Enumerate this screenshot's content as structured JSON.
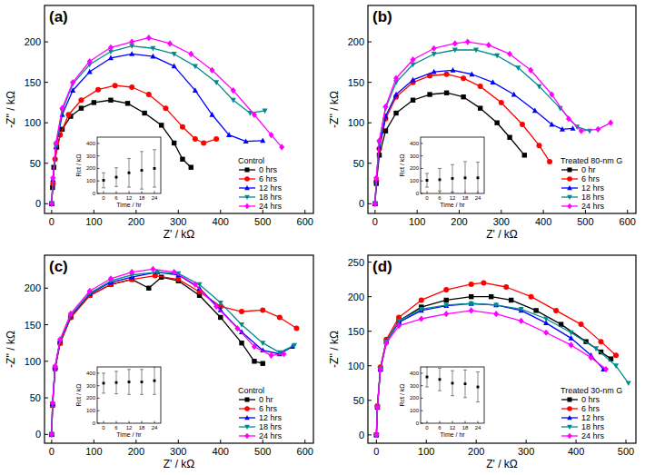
{
  "chart_data": [
    {
      "type": "line",
      "panel": "(a)",
      "xlabel": "Z' / kΩ",
      "ylabel": "-Z'' / kΩ",
      "xlim": [
        -17,
        620
      ],
      "ylim": [
        -12,
        245
      ],
      "xticks": [
        0,
        100,
        200,
        300,
        400,
        500,
        600
      ],
      "yticks": [
        0,
        50,
        100,
        150,
        200
      ],
      "legend": "lower right",
      "legend_title": "Control",
      "series": [
        {
          "name": "0 hrs",
          "color": "#000000",
          "marker": "square",
          "x": [
            0,
            2,
            5,
            12,
            25,
            45,
            70,
            100,
            140,
            180,
            220,
            260,
            290,
            310,
            330
          ],
          "values": [
            0,
            20,
            45,
            70,
            92,
            108,
            118,
            125,
            128,
            124,
            112,
            97,
            75,
            55,
            45
          ]
        },
        {
          "name": "6 hrs",
          "color": "#ff0000",
          "marker": "circle",
          "x": [
            0,
            3,
            8,
            20,
            40,
            70,
            110,
            150,
            190,
            230,
            270,
            310,
            340,
            360,
            390
          ],
          "values": [
            0,
            25,
            55,
            85,
            110,
            128,
            141,
            146,
            144,
            135,
            118,
            95,
            80,
            75,
            80
          ]
        },
        {
          "name": "12 hrs",
          "color": "#0000ff",
          "marker": "triangle",
          "x": [
            0,
            3,
            10,
            25,
            50,
            90,
            140,
            190,
            240,
            290,
            340,
            380,
            420,
            460,
            500
          ],
          "values": [
            0,
            30,
            70,
            110,
            140,
            163,
            180,
            185,
            182,
            170,
            140,
            110,
            85,
            77,
            78
          ]
        },
        {
          "name": "18 hrs",
          "color": "#008b8b",
          "marker": "triangle-down",
          "x": [
            0,
            3,
            10,
            25,
            50,
            90,
            140,
            190,
            240,
            290,
            340,
            390,
            430,
            470,
            505
          ],
          "values": [
            0,
            30,
            72,
            115,
            148,
            172,
            188,
            195,
            192,
            185,
            170,
            150,
            128,
            112,
            115
          ]
        },
        {
          "name": "24 hrs",
          "color": "#ff00ff",
          "marker": "diamond",
          "x": [
            0,
            3,
            10,
            25,
            50,
            90,
            140,
            190,
            230,
            280,
            330,
            380,
            430,
            480,
            520,
            545
          ],
          "values": [
            0,
            32,
            75,
            118,
            150,
            176,
            193,
            200,
            205,
            198,
            185,
            165,
            140,
            110,
            85,
            70
          ]
        }
      ],
      "inset": {
        "type": "scatter",
        "xlabel": "Time / hr",
        "ylabel": "Rct / kΩ",
        "x": [
          0,
          6,
          12,
          18,
          24
        ],
        "values": [
          105,
          130,
          165,
          185,
          200
        ],
        "errors": [
          60,
          75,
          115,
          150,
          150
        ],
        "xlim": [
          -3,
          27
        ],
        "ylim": [
          0,
          450
        ],
        "xticks": [
          0,
          6,
          12,
          18,
          24
        ],
        "yticks": [
          0,
          100,
          200,
          300,
          400
        ],
        "marker": "square",
        "color": "#000000"
      }
    },
    {
      "type": "line",
      "panel": "(b)",
      "xlabel": "Z' / kΩ",
      "ylabel": "-Z'' / kΩ",
      "xlim": [
        -17,
        620
      ],
      "ylim": [
        -12,
        245
      ],
      "xticks": [
        0,
        100,
        200,
        300,
        400,
        500,
        600
      ],
      "yticks": [
        0,
        50,
        100,
        150,
        200
      ],
      "legend": "lower right",
      "legend_title": "Treated 80-nm G",
      "series": [
        {
          "name": "0 hr",
          "color": "#000000",
          "marker": "square",
          "x": [
            0,
            3,
            10,
            25,
            50,
            90,
            130,
            170,
            210,
            250,
            290,
            320,
            355
          ],
          "values": [
            0,
            25,
            60,
            90,
            112,
            128,
            135,
            137,
            132,
            118,
            100,
            82,
            60
          ]
        },
        {
          "name": "6 hrs",
          "color": "#ff0000",
          "marker": "circle",
          "x": [
            0,
            3,
            10,
            25,
            50,
            90,
            130,
            170,
            210,
            250,
            300,
            350,
            390,
            415
          ],
          "values": [
            0,
            28,
            68,
            105,
            132,
            150,
            158,
            160,
            155,
            145,
            125,
            98,
            72,
            52
          ]
        },
        {
          "name": "12 hrs",
          "color": "#0000ff",
          "marker": "triangle",
          "x": [
            0,
            3,
            10,
            25,
            50,
            90,
            140,
            185,
            230,
            280,
            330,
            380,
            420,
            445,
            470
          ],
          "values": [
            0,
            28,
            70,
            108,
            135,
            153,
            163,
            165,
            160,
            150,
            135,
            115,
            98,
            92,
            93
          ]
        },
        {
          "name": "18 hrs",
          "color": "#008b8b",
          "marker": "triangle-down",
          "x": [
            0,
            3,
            10,
            25,
            50,
            90,
            140,
            190,
            240,
            290,
            340,
            390,
            440,
            480,
            510
          ],
          "values": [
            0,
            30,
            75,
            118,
            150,
            172,
            185,
            190,
            190,
            183,
            168,
            145,
            118,
            95,
            90
          ]
        },
        {
          "name": "24 hrs",
          "color": "#ff00ff",
          "marker": "diamond",
          "x": [
            0,
            3,
            10,
            25,
            50,
            90,
            140,
            190,
            220,
            270,
            320,
            370,
            420,
            460,
            490,
            530,
            560
          ],
          "values": [
            0,
            32,
            78,
            120,
            155,
            178,
            192,
            198,
            200,
            196,
            185,
            165,
            135,
            105,
            90,
            92,
            100
          ]
        }
      ],
      "inset": {
        "type": "scatter",
        "xlabel": "Time / hr",
        "ylabel": "Rct / kΩ",
        "x": [
          0,
          6,
          12,
          18,
          24
        ],
        "values": [
          105,
          110,
          120,
          125,
          125
        ],
        "errors": [
          55,
          90,
          110,
          130,
          125
        ],
        "xlim": [
          -3,
          27
        ],
        "ylim": [
          0,
          450
        ],
        "xticks": [
          0,
          6,
          12,
          18,
          24
        ],
        "yticks": [
          0,
          100,
          200,
          300,
          400
        ],
        "marker": "square",
        "color": "#000000"
      }
    },
    {
      "type": "line",
      "panel": "(c)",
      "xlabel": "Z' / kΩ",
      "ylabel": "-Z'' / kΩ",
      "xlim": [
        -17,
        620
      ],
      "ylim": [
        -12,
        245
      ],
      "xticks": [
        0,
        100,
        200,
        300,
        400,
        500,
        600
      ],
      "yticks": [
        0,
        50,
        100,
        150,
        200
      ],
      "legend": "lower right",
      "legend_title": "Control",
      "series": [
        {
          "name": "0 hr",
          "color": "#000000",
          "marker": "square",
          "x": [
            0,
            2,
            8,
            20,
            45,
            90,
            140,
            190,
            230,
            260,
            300,
            350,
            400,
            450,
            480,
            500
          ],
          "values": [
            0,
            40,
            90,
            125,
            160,
            190,
            205,
            212,
            200,
            215,
            210,
            190,
            160,
            125,
            100,
            97
          ]
        },
        {
          "name": "6 hrs",
          "color": "#ff0000",
          "marker": "circle",
          "x": [
            0,
            2,
            8,
            20,
            45,
            90,
            140,
            190,
            245,
            300,
            350,
            400,
            450,
            500,
            540,
            580
          ],
          "values": [
            0,
            40,
            90,
            125,
            160,
            190,
            205,
            212,
            217,
            212,
            195,
            175,
            168,
            170,
            160,
            145
          ]
        },
        {
          "name": "12 hrs",
          "color": "#0000ff",
          "marker": "triangle",
          "x": [
            0,
            2,
            8,
            20,
            45,
            90,
            140,
            190,
            250,
            300,
            350,
            400,
            450,
            500,
            540,
            570
          ],
          "values": [
            0,
            42,
            92,
            128,
            162,
            192,
            208,
            215,
            222,
            218,
            200,
            170,
            140,
            115,
            110,
            120
          ]
        },
        {
          "name": "18 hrs",
          "color": "#008b8b",
          "marker": "triangle-down",
          "x": [
            0,
            2,
            8,
            20,
            45,
            90,
            140,
            190,
            250,
            300,
            350,
            400,
            450,
            500,
            540,
            575
          ],
          "values": [
            0,
            42,
            92,
            128,
            163,
            193,
            210,
            218,
            222,
            220,
            205,
            180,
            150,
            125,
            112,
            122
          ]
        },
        {
          "name": "24 hrs",
          "color": "#ff00ff",
          "marker": "diamond",
          "x": [
            0,
            2,
            8,
            20,
            45,
            90,
            140,
            190,
            240,
            290,
            340,
            390,
            440,
            480,
            520,
            550
          ],
          "values": [
            0,
            43,
            93,
            130,
            165,
            196,
            213,
            222,
            226,
            222,
            205,
            175,
            145,
            120,
            108,
            110
          ]
        }
      ],
      "inset": {
        "type": "scatter",
        "xlabel": "Time / hr",
        "ylabel": "Rct / kΩ",
        "x": [
          0,
          6,
          12,
          18,
          24
        ],
        "values": [
          320,
          325,
          330,
          330,
          340
        ],
        "errors": [
          80,
          90,
          100,
          100,
          110
        ],
        "xlim": [
          -3,
          27
        ],
        "ylim": [
          0,
          450
        ],
        "xticks": [
          0,
          6,
          12,
          18,
          24
        ],
        "yticks": [
          0,
          100,
          200,
          300,
          400
        ],
        "marker": "square",
        "color": "#000000"
      }
    },
    {
      "type": "line",
      "panel": "(d)",
      "xlabel": "Z' / kΩ",
      "ylabel": "-Z'' / kΩ",
      "xlim": [
        -17,
        520
      ],
      "ylim": [
        -12,
        260
      ],
      "xticks": [
        0,
        100,
        200,
        300,
        400,
        500
      ],
      "yticks": [
        0,
        50,
        100,
        150,
        200,
        250
      ],
      "legend": "lower right",
      "legend_title": "Treated 30-nm G",
      "series": [
        {
          "name": "0 hrs",
          "color": "#000000",
          "marker": "square",
          "x": [
            0,
            2,
            8,
            20,
            45,
            90,
            140,
            190,
            230,
            270,
            320,
            370,
            420,
            450,
            470
          ],
          "values": [
            0,
            40,
            95,
            135,
            165,
            185,
            195,
            200,
            200,
            195,
            180,
            160,
            135,
            120,
            110
          ]
        },
        {
          "name": "6 hrs",
          "color": "#ff0000",
          "marker": "circle",
          "x": [
            0,
            2,
            8,
            20,
            45,
            90,
            140,
            190,
            215,
            260,
            310,
            360,
            410,
            450,
            480
          ],
          "values": [
            0,
            42,
            98,
            138,
            170,
            195,
            210,
            218,
            220,
            214,
            200,
            180,
            160,
            135,
            115
          ]
        },
        {
          "name": "12 hrs",
          "color": "#0000ff",
          "marker": "triangle",
          "x": [
            0,
            2,
            8,
            20,
            45,
            90,
            140,
            190,
            240,
            290,
            340,
            390,
            430,
            455
          ],
          "values": [
            0,
            40,
            95,
            135,
            163,
            180,
            187,
            190,
            188,
            180,
            162,
            140,
            115,
            95
          ]
        },
        {
          "name": "18 hrs",
          "color": "#008b8b",
          "marker": "triangle-down",
          "x": [
            0,
            2,
            8,
            20,
            45,
            90,
            140,
            190,
            240,
            290,
            340,
            390,
            440,
            480,
            505
          ],
          "values": [
            0,
            40,
            96,
            135,
            165,
            182,
            188,
            190,
            188,
            182,
            168,
            148,
            125,
            100,
            75
          ]
        },
        {
          "name": "24 hrs",
          "color": "#ff00ff",
          "marker": "diamond",
          "x": [
            0,
            2,
            8,
            20,
            45,
            90,
            140,
            190,
            240,
            290,
            340,
            390,
            430,
            460
          ],
          "values": [
            0,
            40,
            95,
            133,
            158,
            168,
            175,
            180,
            175,
            165,
            148,
            130,
            112,
            95
          ]
        }
      ],
      "inset": {
        "type": "scatter",
        "xlabel": "Time / hr",
        "ylabel": "Rct / kΩ",
        "x": [
          0,
          6,
          12,
          18,
          24
        ],
        "values": [
          370,
          350,
          320,
          315,
          290
        ],
        "errors": [
          80,
          90,
          100,
          110,
          120
        ],
        "xlim": [
          -3,
          27
        ],
        "ylim": [
          0,
          450
        ],
        "xticks": [
          0,
          6,
          12,
          18,
          24
        ],
        "yticks": [
          0,
          100,
          200,
          300,
          400
        ],
        "marker": "square",
        "color": "#000000"
      }
    }
  ]
}
